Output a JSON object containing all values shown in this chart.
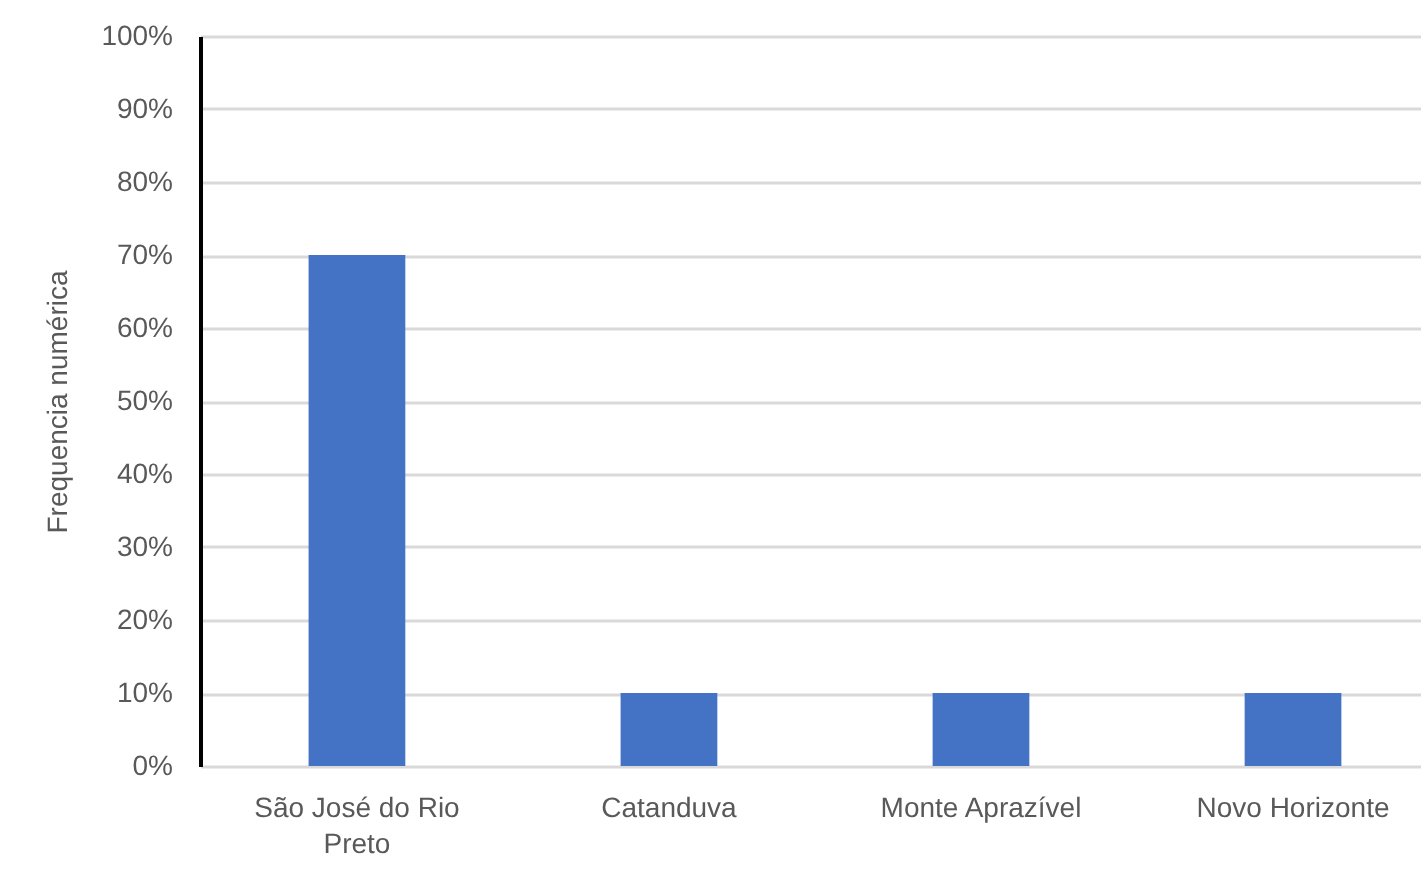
{
  "chart_data": {
    "type": "bar",
    "ylabel": "Frequencia numérica",
    "categories": [
      "São José do Rio Preto",
      "Catanduva",
      "Monte Aprazível",
      "Novo Horizonte"
    ],
    "values": [
      70,
      10,
      10,
      10
    ],
    "color": "#4472c4",
    "ylim": [
      0,
      100
    ],
    "yticks": [
      {
        "value": 0,
        "label": "0%"
      },
      {
        "value": 10,
        "label": "10%"
      },
      {
        "value": 20,
        "label": "20%"
      },
      {
        "value": 30,
        "label": "30%"
      },
      {
        "value": 40,
        "label": "40%"
      },
      {
        "value": 50,
        "label": "50%"
      },
      {
        "value": 60,
        "label": "60%"
      },
      {
        "value": 70,
        "label": "70%"
      },
      {
        "value": 80,
        "label": "80%"
      },
      {
        "value": 90,
        "label": "90%"
      },
      {
        "value": 100,
        "label": "100%"
      }
    ],
    "grid": "y"
  }
}
